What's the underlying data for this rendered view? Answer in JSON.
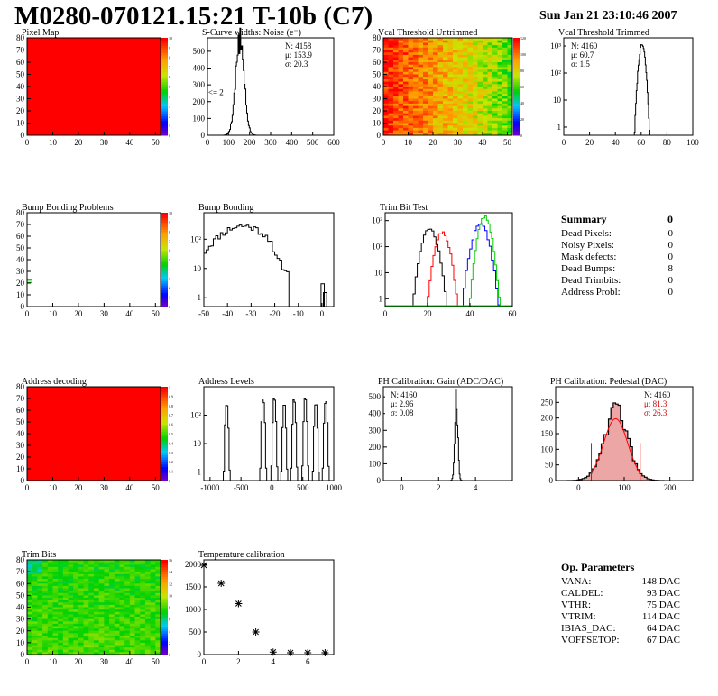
{
  "header": {
    "title": "M0280-070121.15:21 T-10b (C7)",
    "date": "Sun Jan 21 23:10:46 2007"
  },
  "colors": {
    "red": "#ff0000",
    "green": "#00cc00",
    "blue": "#0000ff",
    "pedestal_fill": "#cc0000"
  },
  "summary": {
    "title": "Summary",
    "title_value": "0",
    "items": [
      {
        "label": "Dead Pixels:",
        "value": "0"
      },
      {
        "label": "Noisy Pixels:",
        "value": "0"
      },
      {
        "label": "Mask defects:",
        "value": "0"
      },
      {
        "label": "Dead Bumps:",
        "value": "8"
      },
      {
        "label": "Dead Trimbits:",
        "value": "0"
      },
      {
        "label": "Address Probl:",
        "value": "0"
      }
    ]
  },
  "op_params": {
    "title": "Op. Parameters",
    "items": [
      {
        "label": "VANA:",
        "value": "148 DAC"
      },
      {
        "label": "CALDEL:",
        "value": "93 DAC"
      },
      {
        "label": "VTHR:",
        "value": "75 DAC"
      },
      {
        "label": "VTRIM:",
        "value": "114 DAC"
      },
      {
        "label": "IBIAS_DAC:",
        "value": "64 DAC"
      },
      {
        "label": "VOFFSETOP:",
        "value": "67 DAC"
      }
    ]
  },
  "chart_data": [
    {
      "id": "pixel-map",
      "type": "heatmap",
      "title": "Pixel Map",
      "xlim": [
        0,
        52
      ],
      "ylim": [
        0,
        80
      ],
      "xticks": [
        "0",
        "10",
        "20",
        "30",
        "40",
        "50"
      ],
      "yticks": [
        "0",
        "10",
        "20",
        "30",
        "40",
        "50",
        "60",
        "70",
        "80"
      ],
      "fill": "uniform",
      "value": 10,
      "zticks": [
        "0",
        "1",
        "2",
        "3",
        "4",
        "5",
        "6",
        "7",
        "8",
        "9",
        "10"
      ]
    },
    {
      "id": "scurve-widths",
      "type": "bar",
      "title": "S-Curve widths: Noise (e⁻)",
      "xlim": [
        0,
        600
      ],
      "ylim": [
        0,
        580
      ],
      "xticks": [
        "0",
        "100",
        "200",
        "300",
        "400",
        "500",
        "600"
      ],
      "yticks": [
        "0",
        "100",
        "200",
        "300",
        "400",
        "500"
      ],
      "stats": [
        "N: 4158",
        "μ: 153.9",
        "σ: 20.3"
      ],
      "annotation": "<= 2",
      "peak": {
        "mean": 153.9,
        "sigma": 20.3,
        "max": 560
      }
    },
    {
      "id": "vcal-untrimmed",
      "type": "heatmap",
      "title": "Vcal Threshold Untrimmed",
      "xlim": [
        0,
        52
      ],
      "ylim": [
        0,
        80
      ],
      "xticks": [
        "0",
        "10",
        "20",
        "30",
        "40",
        "50"
      ],
      "yticks": [
        "0",
        "10",
        "20",
        "30",
        "40",
        "50",
        "60",
        "70",
        "80"
      ],
      "fill": "gradient-left-to-right",
      "from": "red",
      "to": "green",
      "zticks": [
        "0",
        "20",
        "40",
        "60",
        "80",
        "100",
        "120"
      ]
    },
    {
      "id": "vcal-trimmed",
      "type": "bar",
      "title": "Vcal Threshold Trimmed",
      "xlim": [
        0,
        100
      ],
      "ylog": true,
      "ylim": [
        0.5,
        2000
      ],
      "xticks": [
        "0",
        "20",
        "40",
        "60",
        "80",
        "100"
      ],
      "yticks": [
        "1",
        "10",
        "10²",
        "10³"
      ],
      "stats": [
        "N: 4160",
        "μ: 60.7",
        "σ: 1.5"
      ],
      "peak": {
        "mean": 60.7,
        "sigma": 1.5,
        "max": 1100
      }
    },
    {
      "id": "bump-problems",
      "type": "heatmap",
      "title": "Bump Bonding Problems",
      "xlim": [
        0,
        52
      ],
      "ylim": [
        0,
        80
      ],
      "xticks": [
        "0",
        "10",
        "20",
        "30",
        "40",
        "50"
      ],
      "yticks": [
        "0",
        "10",
        "20",
        "30",
        "40",
        "50",
        "60",
        "70",
        "80"
      ],
      "fill": "empty",
      "cells": [
        {
          "x": 0,
          "y": 20,
          "w": 2,
          "h": 1
        },
        {
          "x": 0,
          "y": 22,
          "w": 2,
          "h": 1
        }
      ],
      "zticks": [
        "0",
        "1",
        "2",
        "3",
        "4",
        "5",
        "6",
        "7",
        "8",
        "9",
        "10"
      ]
    },
    {
      "id": "bump-bonding",
      "type": "bar",
      "title": "Bump Bonding",
      "xlim": [
        -50,
        5
      ],
      "ylog": true,
      "ylim": [
        0.5,
        800
      ],
      "xticks": [
        "-50",
        "-40",
        "-30",
        "-20",
        "-10",
        "0"
      ],
      "yticks": [
        "1",
        "10",
        "10²"
      ],
      "peak": {
        "mean": -34,
        "sigma": 8,
        "max": 300
      }
    },
    {
      "id": "trim-bit-test",
      "type": "line",
      "title": "Trim Bit Test",
      "xlim": [
        0,
        60
      ],
      "ylog": true,
      "ylim": [
        0.5,
        2000
      ],
      "xticks": [
        "0",
        "20",
        "40",
        "60"
      ],
      "yticks": [
        "1",
        "10",
        "10²",
        "10³"
      ],
      "series": [
        {
          "mean": 21,
          "sigma": 2.2,
          "max": 450,
          "color": "#000000"
        },
        {
          "mean": 27,
          "sigma": 2.0,
          "max": 350,
          "color": "#ff0000"
        },
        {
          "mean": 45,
          "sigma": 2.3,
          "max": 700,
          "color": "#0000ff"
        },
        {
          "mean": 47,
          "sigma": 1.8,
          "max": 1400,
          "color": "#00cc00"
        }
      ]
    },
    {
      "id": "address-decoding",
      "type": "heatmap",
      "title": "Address decoding",
      "xlim": [
        0,
        52
      ],
      "ylim": [
        0,
        80
      ],
      "xticks": [
        "0",
        "10",
        "20",
        "30",
        "40",
        "50"
      ],
      "yticks": [
        "0",
        "10",
        "20",
        "30",
        "40",
        "50",
        "60",
        "70",
        "80"
      ],
      "fill": "uniform",
      "value": 1,
      "zticks": [
        "0",
        "0.1",
        "0.2",
        "0.3",
        "0.4",
        "0.5",
        "0.6",
        "0.7",
        "0.8",
        "0.9",
        "1"
      ]
    },
    {
      "id": "address-levels",
      "type": "bar",
      "title": "Address Levels",
      "xlim": [
        -1100,
        1000
      ],
      "ylog": true,
      "ylim": [
        0.5,
        1000
      ],
      "xticks": [
        "-1000",
        "-500",
        "0",
        "500",
        "1000"
      ],
      "yticks": [
        "1",
        "10",
        "10²"
      ],
      "peaks": [
        -730,
        -140,
        40,
        200,
        360,
        540,
        710,
        870
      ]
    },
    {
      "id": "ph-gain",
      "type": "bar",
      "title": "PH Calibration: Gain (ADC/DAC)",
      "xlim": [
        -1,
        6
      ],
      "ylim": [
        0,
        560
      ],
      "xticks": [
        "0",
        "2",
        "4"
      ],
      "yticks": [
        "0",
        "100",
        "200",
        "300",
        "400",
        "500"
      ],
      "stats": [
        "N: 4160",
        "μ: 2.96",
        "σ: 0.08"
      ],
      "peak": {
        "mean": 2.96,
        "sigma": 0.08,
        "max": 500
      }
    },
    {
      "id": "ph-pedestal",
      "type": "bar",
      "title": "PH Calibration: Pedestal (DAC)",
      "xlim": [
        -50,
        250
      ],
      "ylim": [
        0,
        300
      ],
      "xticks": [
        "0",
        "100",
        "200"
      ],
      "yticks": [
        "0",
        "50",
        "100",
        "150",
        "200",
        "250"
      ],
      "stats": [
        "N: 4160",
        "μ: 81.3",
        "σ: 26.3"
      ],
      "peak": {
        "mean": 81.3,
        "sigma": 26.3,
        "max": 220
      },
      "fit_range": [
        28,
        135
      ]
    },
    {
      "id": "trim-bits",
      "type": "heatmap",
      "title": "Trim Bits",
      "xlim": [
        0,
        52
      ],
      "ylim": [
        0,
        80
      ],
      "xticks": [
        "0",
        "10",
        "20",
        "30",
        "40",
        "50"
      ],
      "yticks": [
        "0",
        "10",
        "20",
        "30",
        "40",
        "50",
        "60",
        "70",
        "80"
      ],
      "fill": "noise-green",
      "zticks": [
        "0",
        "2",
        "4",
        "6",
        "8",
        "10",
        "12",
        "14",
        "16"
      ]
    },
    {
      "id": "temperature",
      "type": "scatter",
      "title": "Temperature calibration",
      "xlim": [
        0,
        7.5
      ],
      "ylim": [
        0,
        2100
      ],
      "xticks": [
        "0",
        "2",
        "4",
        "6"
      ],
      "yticks": [
        "0",
        "500",
        "1000",
        "1500",
        "2000"
      ],
      "x": [
        0,
        1,
        2,
        3,
        4,
        5,
        6,
        7
      ],
      "y": [
        1980,
        1580,
        1130,
        500,
        55,
        40,
        40,
        40
      ]
    }
  ]
}
